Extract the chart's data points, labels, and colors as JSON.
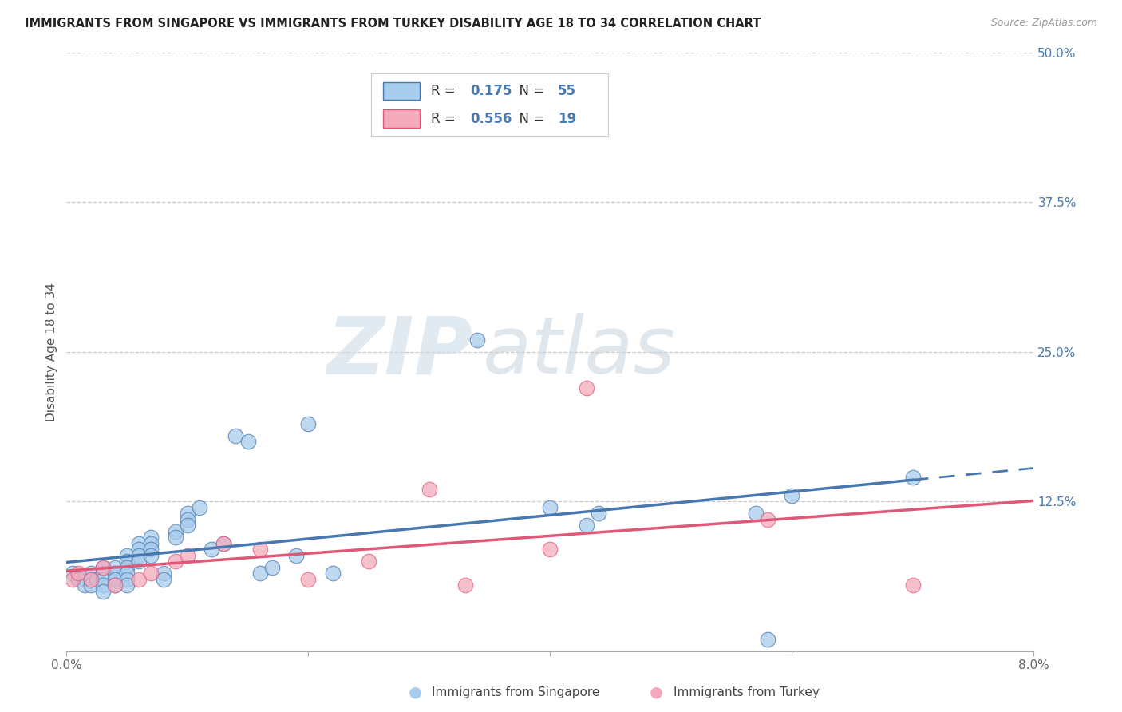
{
  "title": "IMMIGRANTS FROM SINGAPORE VS IMMIGRANTS FROM TURKEY DISABILITY AGE 18 TO 34 CORRELATION CHART",
  "source": "Source: ZipAtlas.com",
  "ylabel": "Disability Age 18 to 34",
  "xlim": [
    0.0,
    0.08
  ],
  "ylim": [
    0.0,
    0.5
  ],
  "xticks": [
    0.0,
    0.02,
    0.04,
    0.06,
    0.08
  ],
  "xticklabels": [
    "0.0%",
    "",
    "",
    "",
    "8.0%"
  ],
  "yticks_right": [
    0.0,
    0.125,
    0.25,
    0.375,
    0.5
  ],
  "yticklabels_right": [
    "",
    "12.5%",
    "25.0%",
    "37.5%",
    "50.0%"
  ],
  "legend_r_singapore": "0.175",
  "legend_n_singapore": "55",
  "legend_r_turkey": "0.556",
  "legend_n_turkey": "19",
  "color_singapore": "#A8CCEC",
  "color_turkey": "#F4AABC",
  "color_singapore_line": "#4878B0",
  "color_turkey_line": "#E05878",
  "watermark_zip": "ZIP",
  "watermark_atlas": "atlas",
  "singapore_x": [
    0.0005,
    0.001,
    0.0015,
    0.002,
    0.002,
    0.002,
    0.0025,
    0.003,
    0.003,
    0.003,
    0.003,
    0.003,
    0.004,
    0.004,
    0.004,
    0.004,
    0.005,
    0.005,
    0.005,
    0.005,
    0.005,
    0.005,
    0.006,
    0.006,
    0.006,
    0.006,
    0.007,
    0.007,
    0.007,
    0.007,
    0.008,
    0.008,
    0.009,
    0.009,
    0.01,
    0.01,
    0.01,
    0.011,
    0.012,
    0.013,
    0.014,
    0.015,
    0.016,
    0.017,
    0.019,
    0.02,
    0.022,
    0.034,
    0.04,
    0.043,
    0.044,
    0.057,
    0.058,
    0.06,
    0.07
  ],
  "singapore_y": [
    0.065,
    0.06,
    0.055,
    0.065,
    0.06,
    0.055,
    0.06,
    0.07,
    0.065,
    0.06,
    0.055,
    0.05,
    0.07,
    0.065,
    0.06,
    0.055,
    0.08,
    0.075,
    0.07,
    0.065,
    0.06,
    0.055,
    0.09,
    0.085,
    0.08,
    0.075,
    0.095,
    0.09,
    0.085,
    0.08,
    0.065,
    0.06,
    0.1,
    0.095,
    0.115,
    0.11,
    0.105,
    0.12,
    0.085,
    0.09,
    0.18,
    0.175,
    0.065,
    0.07,
    0.08,
    0.19,
    0.065,
    0.26,
    0.12,
    0.105,
    0.115,
    0.115,
    0.01,
    0.13,
    0.145
  ],
  "turkey_x": [
    0.0005,
    0.001,
    0.002,
    0.003,
    0.004,
    0.006,
    0.007,
    0.009,
    0.01,
    0.013,
    0.016,
    0.02,
    0.025,
    0.03,
    0.033,
    0.04,
    0.043,
    0.058,
    0.07
  ],
  "turkey_y": [
    0.06,
    0.065,
    0.06,
    0.07,
    0.055,
    0.06,
    0.065,
    0.075,
    0.08,
    0.09,
    0.085,
    0.06,
    0.075,
    0.135,
    0.055,
    0.085,
    0.22,
    0.11,
    0.055
  ]
}
